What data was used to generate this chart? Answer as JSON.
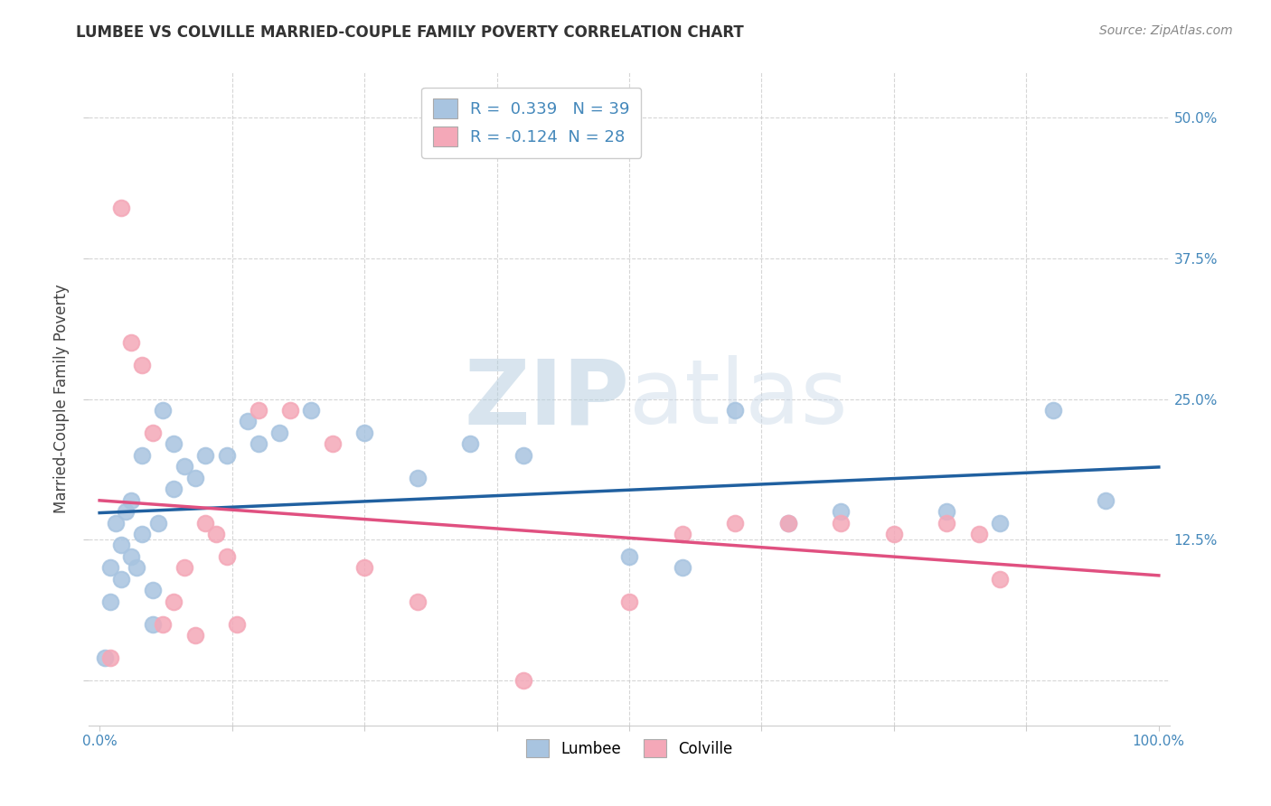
{
  "title": "LUMBEE VS COLVILLE MARRIED-COUPLE FAMILY POVERTY CORRELATION CHART",
  "source": "Source: ZipAtlas.com",
  "ylabel": "Married-Couple Family Poverty",
  "lumbee_R": 0.339,
  "lumbee_N": 39,
  "colville_R": -0.124,
  "colville_N": 28,
  "lumbee_color": "#a8c4e0",
  "colville_color": "#f4a8b8",
  "lumbee_line_color": "#2060a0",
  "colville_line_color": "#e05080",
  "watermark_zip": "ZIP",
  "watermark_atlas": "atlas",
  "background_color": "#ffffff",
  "lumbee_x": [
    0.5,
    1,
    1,
    1.5,
    2,
    2,
    2.5,
    3,
    3,
    3.5,
    4,
    4,
    5,
    5,
    5.5,
    6,
    7,
    7,
    8,
    9,
    10,
    12,
    14,
    15,
    17,
    20,
    25,
    30,
    35,
    40,
    50,
    55,
    60,
    65,
    70,
    80,
    85,
    90,
    95
  ],
  "lumbee_y": [
    2,
    7,
    10,
    14,
    9,
    12,
    15,
    11,
    16,
    10,
    13,
    20,
    5,
    8,
    14,
    24,
    17,
    21,
    19,
    18,
    20,
    20,
    23,
    21,
    22,
    24,
    22,
    18,
    21,
    20,
    11,
    10,
    24,
    14,
    15,
    15,
    14,
    24,
    16
  ],
  "colville_x": [
    1,
    2,
    3,
    4,
    5,
    6,
    7,
    8,
    9,
    10,
    11,
    12,
    13,
    15,
    18,
    22,
    25,
    30,
    40,
    50,
    55,
    60,
    65,
    70,
    75,
    80,
    83,
    85
  ],
  "colville_y": [
    2,
    42,
    30,
    28,
    22,
    5,
    7,
    10,
    4,
    14,
    13,
    11,
    5,
    24,
    24,
    21,
    10,
    7,
    0,
    7,
    13,
    14,
    14,
    14,
    13,
    14,
    13,
    9
  ],
  "ytick_positions": [
    0,
    12.5,
    25,
    37.5,
    50
  ],
  "ytick_labels_right": [
    "",
    "12.5%",
    "25.0%",
    "37.5%",
    "50.0%"
  ],
  "xtick_positions": [
    0,
    12.5,
    25,
    37.5,
    50,
    62.5,
    75,
    87.5,
    100
  ],
  "xtick_labels": [
    "0.0%",
    "",
    "",
    "",
    "",
    "",
    "",
    "",
    "100.0%"
  ],
  "ylim_min": -4,
  "ylim_max": 54,
  "xlim_min": -1,
  "xlim_max": 101
}
